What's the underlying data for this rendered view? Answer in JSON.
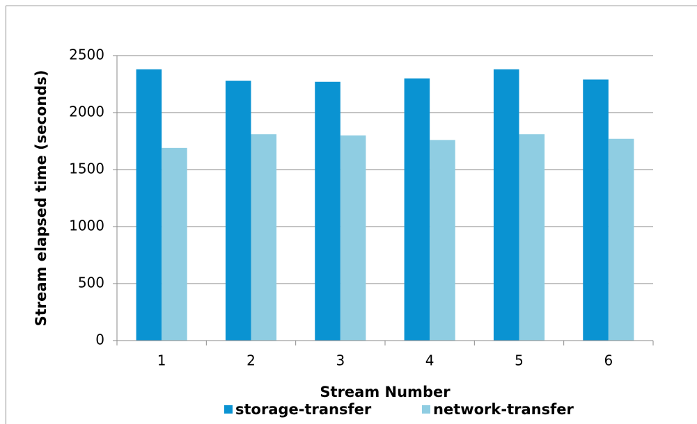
{
  "chart_data": {
    "type": "bar",
    "x_label": "Stream Number",
    "y_label": "Stream elapsed time (seconds)",
    "categories": [
      "1",
      "2",
      "3",
      "4",
      "5",
      "6"
    ],
    "series": [
      {
        "name": "storage-transfer",
        "color": "#0a93d2",
        "values": [
          2380,
          2280,
          2270,
          2300,
          2380,
          2290
        ]
      },
      {
        "name": "network-transfer",
        "color": "#8fcde2",
        "values": [
          1690,
          1810,
          1800,
          1760,
          1810,
          1770
        ]
      }
    ],
    "ylim": [
      0,
      2500
    ],
    "yticks": [
      0,
      500,
      1000,
      1500,
      2000,
      2500
    ],
    "grid": true,
    "legend": "bottom"
  }
}
